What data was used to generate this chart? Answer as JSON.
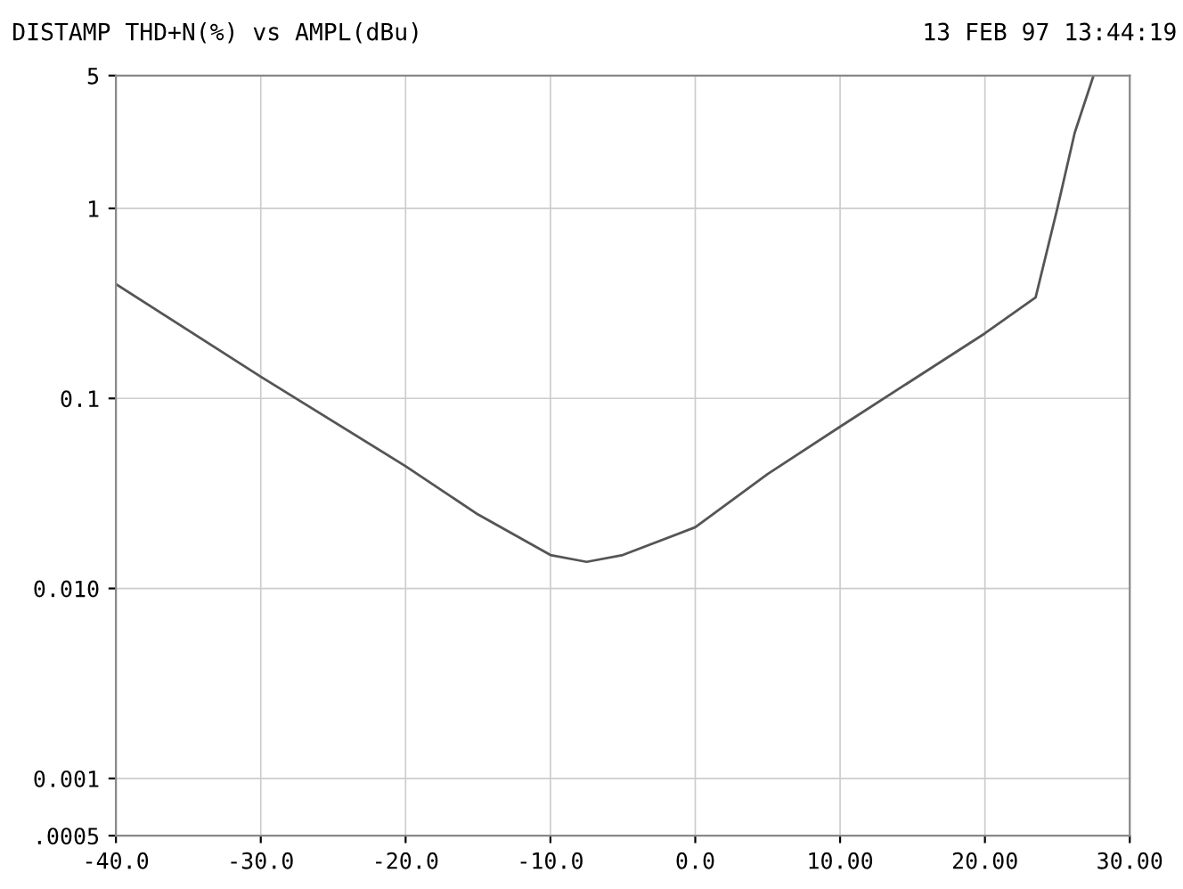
{
  "chart_data": {
    "type": "line",
    "title": "DISTAMP THD+N(%) vs AMPL(dBu)",
    "annotations": [
      "13 FEB 97 13:44:19"
    ],
    "x": [
      -40,
      -30,
      -20,
      -15,
      -10,
      -7.5,
      -5,
      0,
      5,
      10,
      20,
      23.5,
      25.0,
      26.2,
      27.5
    ],
    "series": [
      {
        "color": "#555555",
        "values": [
          0.4,
          0.13,
          0.044,
          0.0245,
          0.015,
          0.0138,
          0.015,
          0.021,
          0.04,
          0.071,
          0.22,
          0.34,
          1.0,
          2.5,
          5
        ]
      }
    ],
    "log": "y",
    "xlim": [
      -40,
      30
    ],
    "ylim": [
      0.0005,
      5
    ],
    "xticks": [
      {
        "value": -40,
        "label": "-40.0"
      },
      {
        "value": -30,
        "label": "-30.0"
      },
      {
        "value": -20,
        "label": "-20.0"
      },
      {
        "value": -10,
        "label": "-10.0"
      },
      {
        "value": 0,
        "label": "0.0"
      },
      {
        "value": 10,
        "label": "10.00"
      },
      {
        "value": 20,
        "label": "20.00"
      },
      {
        "value": 30,
        "label": "30.00"
      }
    ],
    "yticks": [
      {
        "value": 0.0005,
        "label": ".0005"
      },
      {
        "value": 0.001,
        "label": "0.001"
      },
      {
        "value": 0.01,
        "label": "0.010"
      },
      {
        "value": 0.1,
        "label": "0.1"
      },
      1,
      5
    ],
    "grid": true,
    "marker": "none",
    "line_style": "solid"
  }
}
